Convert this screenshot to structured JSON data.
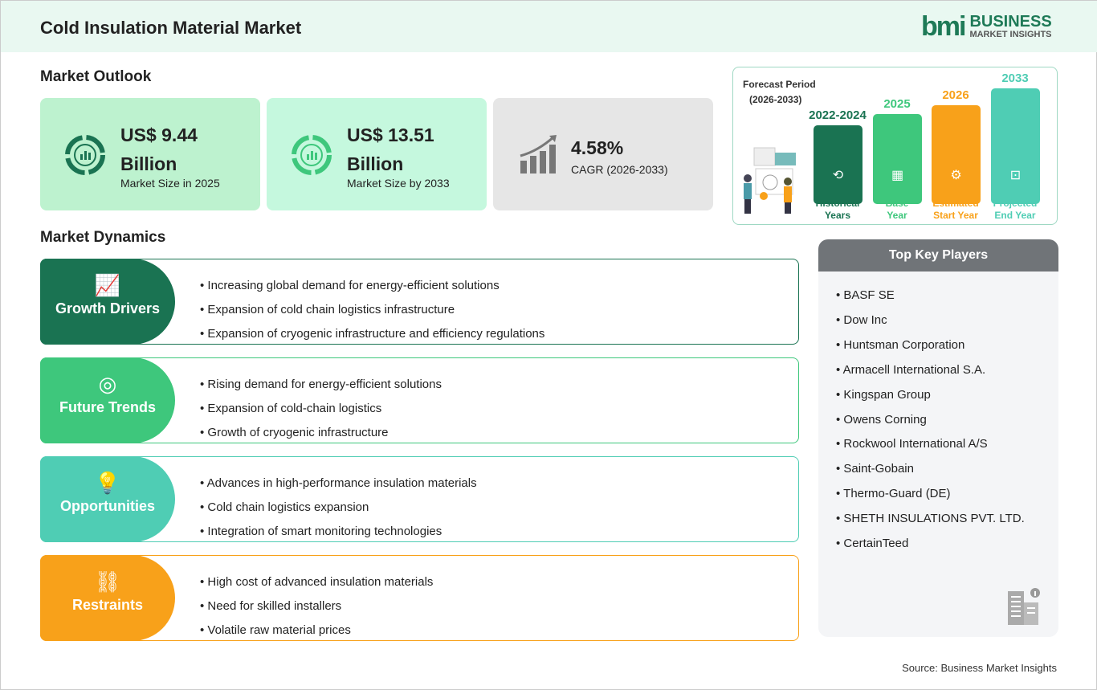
{
  "header": {
    "title": "Cold Insulation Material Market",
    "logo_mark": "bmi",
    "logo_line1": "BUSINESS",
    "logo_line2": "MARKET INSIGHTS"
  },
  "outlook": {
    "heading": "Market Outlook",
    "cards": [
      {
        "value_line1": "US$ 9.44",
        "value_line2": "Billion",
        "label": "Market Size in 2025",
        "icon": "donut-chart-icon",
        "bg": "#bdf2cf"
      },
      {
        "value_line1": "US$ 13.51",
        "value_line2": "Billion",
        "label": "Market Size by 2033",
        "icon": "donut-chart-icon",
        "bg": "#c5f8de"
      },
      {
        "value_line1": "4.58%",
        "label": "CAGR (2026-2033)",
        "icon": "growth-bars-icon",
        "bg": "#e6e6e6"
      }
    ]
  },
  "forecast": {
    "title_line1": "Forecast Period",
    "title_line2": "(2026-2033)",
    "bars": [
      {
        "year": "2022-2024",
        "label_line1": "Historical",
        "label_line2": "Years",
        "color": "#1a7352",
        "icon": "history-icon"
      },
      {
        "year": "2025",
        "label_line1": "Base",
        "label_line2": "Year",
        "color": "#3ec77c",
        "icon": "calendar-icon"
      },
      {
        "year": "2026",
        "label_line1": "Estimated",
        "label_line2": "Start Year",
        "color": "#f8a11a",
        "icon": "gear-chart-icon"
      },
      {
        "year": "2033",
        "label_line1": "Projected",
        "label_line2": "End Year",
        "color": "#4fcdb4",
        "icon": "presentation-icon"
      }
    ]
  },
  "dynamics": {
    "heading": "Market Dynamics",
    "sections": [
      {
        "title": "Growth Drivers",
        "color": "#1a7352",
        "icon": "growth-chart-icon",
        "items": [
          "Increasing global demand for energy-efficient solutions",
          "Expansion of cold chain logistics infrastructure",
          "Expansion of cryogenic infrastructure and efficiency regulations"
        ]
      },
      {
        "title": "Future Trends",
        "color": "#3ec77c",
        "icon": "target-icon",
        "items": [
          "Rising demand for energy-efficient solutions",
          "Expansion of cold-chain logistics",
          "Growth of cryogenic infrastructure"
        ]
      },
      {
        "title": "Opportunities",
        "color": "#4fcdb4",
        "icon": "lightbulb-hand-icon",
        "items": [
          "Advances in high-performance insulation materials",
          "Cold chain logistics expansion",
          "Integration of smart monitoring technologies"
        ]
      },
      {
        "title": "Restraints",
        "color": "#f8a11a",
        "icon": "broken-link-icon",
        "items": [
          "High cost of advanced insulation materials",
          "Need for skilled installers",
          "Volatile raw material prices"
        ]
      }
    ]
  },
  "key_players": {
    "heading": "Top Key Players",
    "items": [
      "BASF SE",
      "Dow Inc",
      "Huntsman Corporation",
      "Armacell International S.A.",
      "Kingspan Group",
      "Owens Corning",
      "Rockwool International A/S",
      "Saint-Gobain",
      "Thermo-Guard (DE)",
      "SHETH INSULATIONS PVT. LTD.",
      "CertainTeed"
    ]
  },
  "source": "Source: Business Market Insights"
}
